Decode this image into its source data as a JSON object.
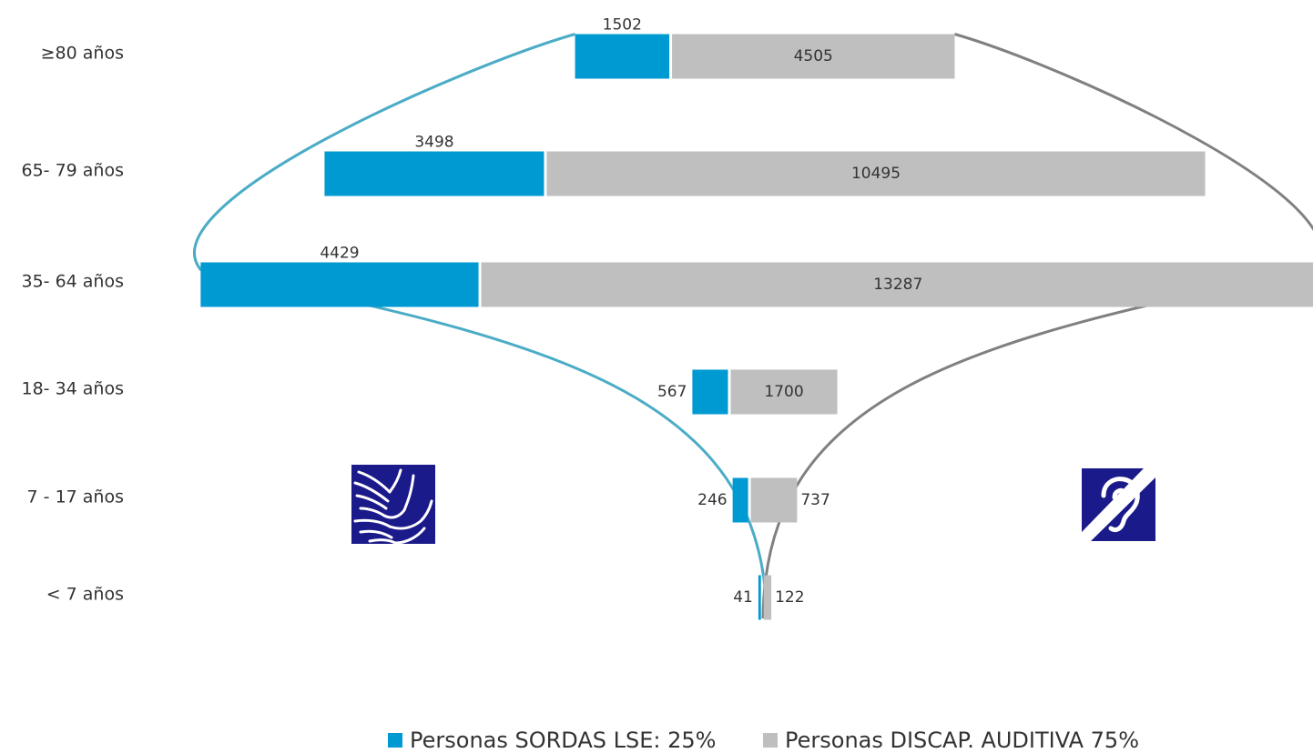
{
  "chart_data": {
    "type": "bar",
    "stacked": true,
    "orientation": "horizontal",
    "categories": [
      "≥80 años",
      "65- 79 años",
      "35- 64 años",
      "18- 34 años",
      "7 - 17 años",
      "< 7 años"
    ],
    "series": [
      {
        "name": "Personas SORDAS LSE: 25%",
        "values": [
          1502,
          3498,
          4429,
          567,
          246,
          41
        ],
        "color": "#009ad2"
      },
      {
        "name": "Personas  DISCAP. AUDITIVA 75%",
        "values": [
          4505,
          10495,
          13287,
          1700,
          737,
          122
        ],
        "color": "#bfbfbf"
      }
    ],
    "legend_position": "bottom",
    "grid": false,
    "curve_colors": {
      "left": "#4bacc6",
      "right": "#808080"
    },
    "icons": [
      {
        "name": "sign-language-icon",
        "colors": {
          "background": "#1b1a8a",
          "foreground": "#ffffff"
        }
      },
      {
        "name": "hearing-loss-icon",
        "colors": {
          "background": "#1b1a8a",
          "foreground": "#ffffff"
        }
      }
    ]
  }
}
